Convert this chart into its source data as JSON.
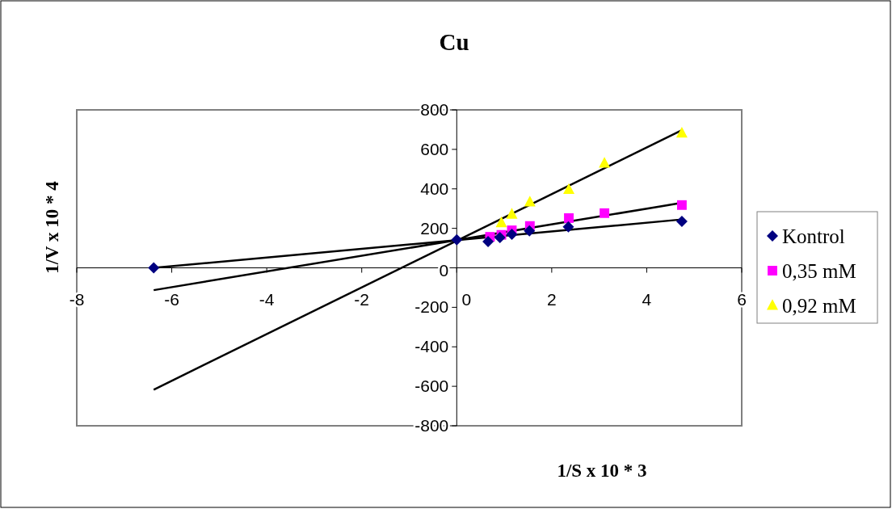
{
  "chart_data": {
    "type": "scatter",
    "title": "Cu",
    "xlabel": "1/S x 10 * 3",
    "ylabel": "1/V x 10 * 4",
    "xlim": [
      -8,
      6
    ],
    "xticks": [
      -8,
      -6,
      -4,
      -2,
      0,
      2,
      4,
      6
    ],
    "ylim": [
      -800,
      800
    ],
    "yticks": [
      -800,
      -600,
      -400,
      -200,
      0,
      200,
      400,
      600,
      800
    ],
    "grid": false,
    "legend": "right",
    "series": [
      {
        "name": "Kontrol",
        "color": "#000080",
        "marker": "diamond",
        "x": [
          -6.38,
          0,
          0.66,
          0.91,
          1.16,
          1.53,
          2.35,
          4.74
        ],
        "values": [
          0,
          142,
          133,
          153,
          170,
          187,
          208,
          235
        ]
      },
      {
        "name": "0,35 mM",
        "color": "#ff00ff",
        "marker": "square",
        "x": [
          0.7,
          0.94,
          1.16,
          1.54,
          2.36,
          3.11,
          4.74
        ],
        "values": [
          157,
          167,
          190,
          212,
          252,
          277,
          318
        ]
      },
      {
        "name": "0,92 mM",
        "color": "#ffff00",
        "marker": "triangle",
        "x": [
          0.94,
          1.16,
          1.54,
          2.36,
          3.11,
          4.74
        ],
        "values": [
          229,
          272,
          334,
          397,
          530,
          683
        ]
      },
      {
        "type": "line",
        "color": "#000000",
        "marker": "none",
        "x": [
          -6.38,
          4.74
        ],
        "values": [
          0,
          245
        ]
      },
      {
        "type": "line",
        "color": "#000000",
        "marker": "none",
        "x": [
          -6.38,
          4.74
        ],
        "values": [
          -113,
          329
        ]
      },
      {
        "type": "line",
        "color": "#000000",
        "marker": "none",
        "x": [
          -6.38,
          4.74
        ],
        "values": [
          -617,
          697
        ]
      }
    ]
  }
}
